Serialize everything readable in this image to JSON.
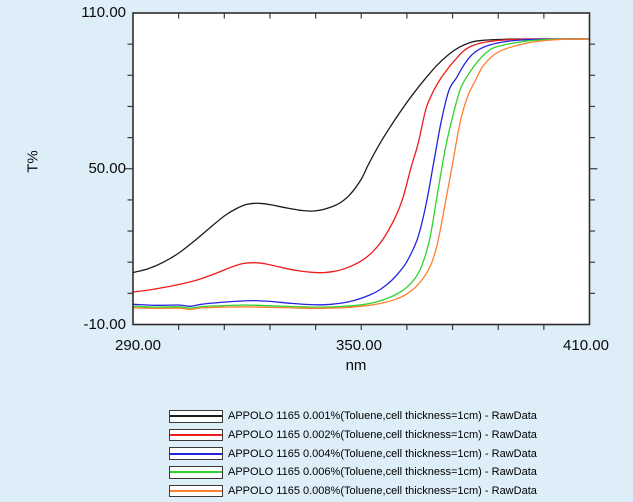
{
  "chart_data": {
    "type": "line",
    "title": "",
    "xlabel": "nm",
    "ylabel": "T%",
    "xlim": [
      290,
      410
    ],
    "ylim": [
      -10,
      110
    ],
    "tick_step": 12,
    "grid": false,
    "legend_position": "bottom",
    "background_color": "#ddeef9",
    "plot_background_color": "#ffffff",
    "frame_color": "#2e2e2e",
    "x_ticks": [
      {
        "value": 290,
        "label": "290.00"
      },
      {
        "value": 350,
        "label": "350.00"
      },
      {
        "value": 410,
        "label": "410.00"
      }
    ],
    "y_ticks": [
      {
        "value": 110,
        "label": "110.00"
      },
      {
        "value": 50,
        "label": "50.00"
      },
      {
        "value": -10,
        "label": "-10.00"
      }
    ],
    "series": [
      {
        "name": "APPOLO 1165 0.001%(Toluene,cell thickness=1cm) - RawData",
        "color": "#1c1c1c",
        "points": [
          [
            290,
            10
          ],
          [
            294,
            11.5
          ],
          [
            298,
            14
          ],
          [
            302,
            17.5
          ],
          [
            306,
            22
          ],
          [
            310,
            27
          ],
          [
            314,
            31.8
          ],
          [
            317,
            34.5
          ],
          [
            320,
            36.3
          ],
          [
            323,
            36.7
          ],
          [
            326,
            36.2
          ],
          [
            330,
            35
          ],
          [
            334,
            34
          ],
          [
            337,
            33.7
          ],
          [
            340,
            34.3
          ],
          [
            344,
            36.5
          ],
          [
            347,
            40
          ],
          [
            350,
            46
          ],
          [
            352,
            52
          ],
          [
            355,
            60
          ],
          [
            358,
            67
          ],
          [
            361,
            73.5
          ],
          [
            364,
            79.5
          ],
          [
            367,
            85
          ],
          [
            370,
            90
          ],
          [
            373,
            94
          ],
          [
            376,
            97
          ],
          [
            379,
            98.8
          ],
          [
            382,
            99.5
          ],
          [
            386,
            99.8
          ],
          [
            391,
            100
          ],
          [
            400,
            100
          ],
          [
            410,
            100
          ]
        ]
      },
      {
        "name": "APPOLO 1165 0.002%(Toluene,cell thickness=1cm) - RawData",
        "color": "#ee1c1c",
        "points": [
          [
            290,
            2.5
          ],
          [
            295,
            3.5
          ],
          [
            300,
            4.8
          ],
          [
            305,
            6.4
          ],
          [
            309,
            8.2
          ],
          [
            313,
            10.4
          ],
          [
            316,
            12.2
          ],
          [
            319,
            13.5
          ],
          [
            322,
            13.8
          ],
          [
            325,
            13.3
          ],
          [
            329,
            12
          ],
          [
            333,
            10.8
          ],
          [
            337,
            10.1
          ],
          [
            340,
            10
          ],
          [
            343,
            10.5
          ],
          [
            346,
            11.7
          ],
          [
            350,
            14.5
          ],
          [
            353,
            18
          ],
          [
            356,
            23.5
          ],
          [
            359,
            31.5
          ],
          [
            361,
            39
          ],
          [
            363,
            50
          ],
          [
            365,
            60
          ],
          [
            367,
            73
          ],
          [
            369,
            80
          ],
          [
            371,
            85
          ],
          [
            373,
            89
          ],
          [
            375,
            92.5
          ],
          [
            377,
            95.5
          ],
          [
            379,
            97.3
          ],
          [
            382,
            98.6
          ],
          [
            386,
            99.4
          ],
          [
            390,
            99.8
          ],
          [
            395,
            100
          ],
          [
            403,
            100
          ],
          [
            410,
            100
          ]
        ]
      },
      {
        "name": "APPOLO 1165 0.004%(Toluene,cell thickness=1cm) - RawData",
        "color": "#2424dd",
        "points": [
          [
            290,
            -2.2
          ],
          [
            296,
            -2.6
          ],
          [
            302,
            -2.5
          ],
          [
            305,
            -3
          ],
          [
            308,
            -2.2
          ],
          [
            313,
            -1.5
          ],
          [
            318,
            -1
          ],
          [
            322,
            -0.8
          ],
          [
            326,
            -1.1
          ],
          [
            331,
            -1.8
          ],
          [
            336,
            -2.3
          ],
          [
            340,
            -2.4
          ],
          [
            344,
            -1.9
          ],
          [
            348,
            -0.8
          ],
          [
            352,
            1.2
          ],
          [
            355,
            3.5
          ],
          [
            358,
            7
          ],
          [
            361,
            12
          ],
          [
            363,
            17
          ],
          [
            365,
            24
          ],
          [
            367,
            36
          ],
          [
            369,
            52
          ],
          [
            371,
            68
          ],
          [
            373,
            80
          ],
          [
            375,
            85
          ],
          [
            377,
            90
          ],
          [
            379,
            93.8
          ],
          [
            381,
            96
          ],
          [
            384,
            97.8
          ],
          [
            388,
            99
          ],
          [
            392,
            99.6
          ],
          [
            397,
            99.9
          ],
          [
            403,
            100
          ],
          [
            410,
            100
          ]
        ]
      },
      {
        "name": "APPOLO 1165 0.006%(Toluene,cell thickness=1cm) - RawData",
        "color": "#2ed32e",
        "points": [
          [
            290,
            -3
          ],
          [
            296,
            -3.3
          ],
          [
            302,
            -3.2
          ],
          [
            305,
            -3.7
          ],
          [
            308,
            -3.1
          ],
          [
            314,
            -2.7
          ],
          [
            320,
            -2.5
          ],
          [
            326,
            -2.8
          ],
          [
            332,
            -3.1
          ],
          [
            338,
            -3.3
          ],
          [
            344,
            -3.1
          ],
          [
            350,
            -2.4
          ],
          [
            354,
            -1.3
          ],
          [
            358,
            0.8
          ],
          [
            361,
            3.2
          ],
          [
            364,
            7.5
          ],
          [
            366,
            13
          ],
          [
            368,
            23
          ],
          [
            370,
            40
          ],
          [
            372,
            57
          ],
          [
            374,
            70
          ],
          [
            376,
            80.5
          ],
          [
            378,
            86
          ],
          [
            381,
            92
          ],
          [
            384,
            96
          ],
          [
            387,
            97.5
          ],
          [
            390,
            98.4
          ],
          [
            394,
            99.3
          ],
          [
            399,
            99.8
          ],
          [
            405,
            100
          ],
          [
            410,
            100
          ]
        ]
      },
      {
        "name": "APPOLO 1165 0.008%(Toluene,cell thickness=1cm) - RawData",
        "color": "#ff7f2e",
        "points": [
          [
            290,
            -3.6
          ],
          [
            296,
            -3.8
          ],
          [
            302,
            -3.7
          ],
          [
            305,
            -4.2
          ],
          [
            308,
            -3.6
          ],
          [
            314,
            -3.3
          ],
          [
            320,
            -3.2
          ],
          [
            326,
            -3.4
          ],
          [
            332,
            -3.6
          ],
          [
            338,
            -3.8
          ],
          [
            344,
            -3.6
          ],
          [
            350,
            -3
          ],
          [
            355,
            -1.9
          ],
          [
            359,
            -0.3
          ],
          [
            362,
            1.8
          ],
          [
            365,
            5.5
          ],
          [
            368,
            12
          ],
          [
            370,
            21
          ],
          [
            372,
            36
          ],
          [
            374,
            52
          ],
          [
            376,
            68
          ],
          [
            378,
            78
          ],
          [
            380,
            84
          ],
          [
            382,
            89.5
          ],
          [
            385,
            94
          ],
          [
            388,
            96.2
          ],
          [
            391,
            97.5
          ],
          [
            395,
            98.8
          ],
          [
            400,
            99.6
          ],
          [
            406,
            100
          ],
          [
            410,
            100
          ]
        ]
      }
    ]
  }
}
